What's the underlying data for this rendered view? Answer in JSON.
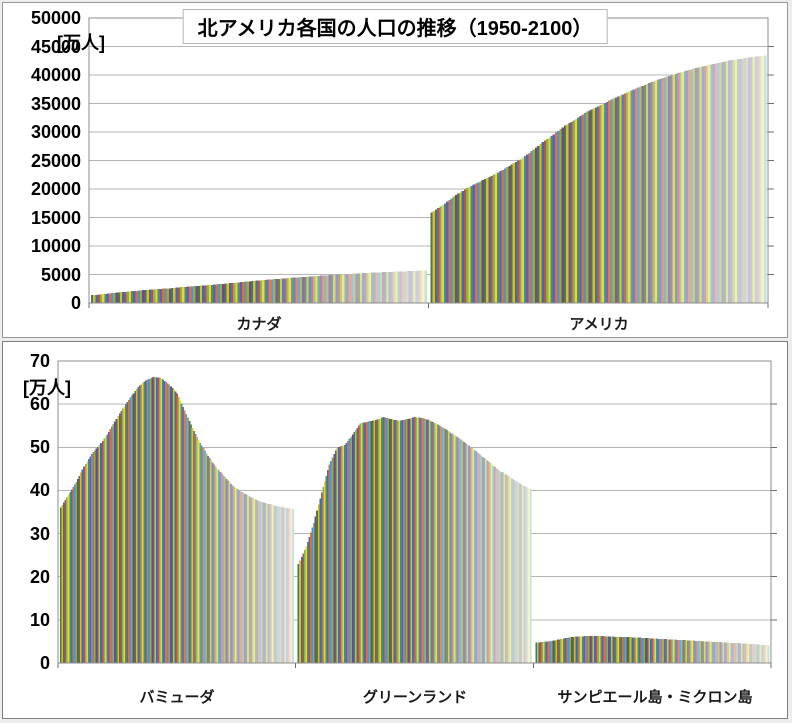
{
  "chart_data": [
    {
      "type": "bar",
      "title": "北アメリカ各国の人口の推移（1950-2100）",
      "ylabel": "[万人]",
      "unit": "万人",
      "ylim": [
        0,
        50000
      ],
      "ytick_step": 5000,
      "ytick_labels": [
        "50000",
        "45000",
        "40000",
        "35000",
        "30000",
        "25000",
        "20000",
        "15000",
        "10000",
        "5000",
        "0"
      ],
      "grid": true,
      "legend": "none",
      "x_years": {
        "start": 1950,
        "end": 2100,
        "step": 1
      },
      "anchor_step_years": 5,
      "fade_start_year": 2022,
      "categories": [
        "カナダ",
        "アメリカ"
      ],
      "series": [
        {
          "name": "カナダ",
          "values": [
            1372,
            1560,
            1784,
            1967,
            2137,
            2317,
            2446,
            2585,
            2766,
            2930,
            3070,
            3226,
            3401,
            3571,
            3774,
            3950,
            4120,
            4280,
            4430,
            4570,
            4710,
            4840,
            4960,
            5080,
            5190,
            5290,
            5380,
            5470,
            5550,
            5630,
            5710
          ]
        },
        {
          "name": "アメリカ",
          "values": [
            15880,
            17180,
            18670,
            19930,
            20980,
            21910,
            22920,
            24060,
            25210,
            26630,
            28220,
            29580,
            31120,
            32240,
            33610,
            34500,
            35500,
            36400,
            37300,
            38100,
            38900,
            39600,
            40200,
            40800,
            41300,
            41800,
            42200,
            42600,
            42900,
            43200,
            43400
          ]
        }
      ]
    },
    {
      "type": "bar",
      "title": "",
      "ylabel": "[万人]",
      "unit": "万人",
      "ylim": [
        0,
        70
      ],
      "ytick_step": 10,
      "ytick_labels": [
        "70",
        "60",
        "50",
        "40",
        "30",
        "20",
        "10",
        "0"
      ],
      "grid": true,
      "legend": "none",
      "x_years": {
        "start": 1950,
        "end": 2100,
        "step": 1
      },
      "anchor_step_years": 5,
      "fade_start_year": 2022,
      "categories": [
        "バミューダ",
        "グリーンランド",
        "サンピエール島・ミクロン島"
      ],
      "series": [
        {
          "name": "バミューダ",
          "values": [
            36,
            39,
            42,
            45.5,
            48.5,
            50.5,
            53,
            56,
            59,
            61.5,
            64,
            65.5,
            66.3,
            66,
            64.5,
            62.5,
            58.5,
            54.5,
            51,
            48,
            45.5,
            43.5,
            41.5,
            40,
            39,
            38,
            37.3,
            36.8,
            36.3,
            36,
            35.7
          ]
        },
        {
          "name": "グリーンランド",
          "values": [
            23,
            27,
            32.5,
            39.5,
            46,
            50,
            50.5,
            53,
            55.5,
            56,
            56.3,
            57,
            56.5,
            56.2,
            56.5,
            57,
            56.8,
            56.2,
            55.3,
            54.2,
            53,
            51.8,
            50.4,
            49,
            47.5,
            46,
            44.5,
            43.5,
            42.3,
            41.2,
            40.3
          ]
        },
        {
          "name": "サンピエール島・ミクロン島",
          "values": [
            4.7,
            4.9,
            5.1,
            5.5,
            5.8,
            6.1,
            6.2,
            6.3,
            6.3,
            6.2,
            6.1,
            6.0,
            6.0,
            5.9,
            5.8,
            5.7,
            5.6,
            5.5,
            5.4,
            5.3,
            5.2,
            5.1,
            5.0,
            4.9,
            4.8,
            4.7,
            4.6,
            4.5,
            4.4,
            4.2,
            4.1
          ]
        }
      ]
    }
  ],
  "style": {
    "bar_color_cycle": [
      "#4a7e3a",
      "#d8b93a",
      "#3a6eb0",
      "#c05046",
      "#8ab43c",
      "#e8d24c",
      "#38948c",
      "#7858a4",
      "#d2763c",
      "#4898cc",
      "#a0a838",
      "#6a4a98"
    ],
    "projection_fade_max_whiteness": 0.72,
    "gridline_color": "#b4b4b4",
    "axis_border_color": "#8c8c8c",
    "tick_color": "#6e6e6e",
    "panel_background": "#ffffff",
    "page_background": "#ededed",
    "text_color": "#000000"
  }
}
